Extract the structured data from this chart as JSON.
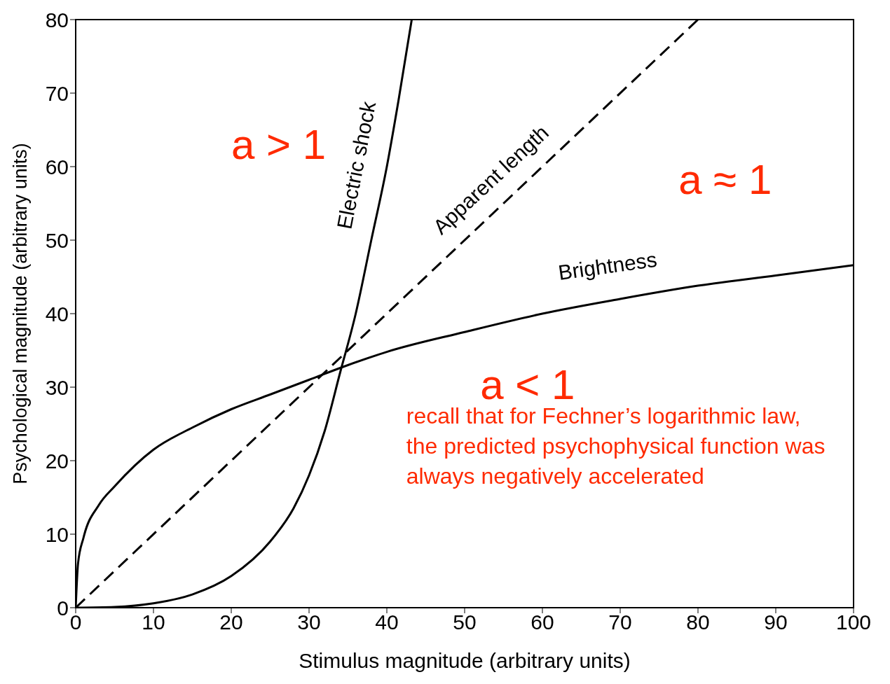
{
  "chart_data": {
    "type": "line",
    "xlabel": "Stimulus magnitude (arbitrary units)",
    "ylabel": "Psychological magnitude (arbitrary units)",
    "xlim": [
      0,
      100
    ],
    "ylim": [
      0,
      80
    ],
    "xticks": [
      0,
      10,
      20,
      30,
      40,
      50,
      60,
      70,
      80,
      90,
      100
    ],
    "yticks": [
      0,
      10,
      20,
      30,
      40,
      50,
      60,
      70,
      80
    ],
    "marker": "none",
    "series": [
      {
        "name": "Electric shock",
        "color": "#000000",
        "line_style": "solid",
        "x": [
          0,
          5,
          10,
          15,
          20,
          25,
          28,
          30,
          32,
          34,
          36,
          38,
          40,
          41.5,
          43.2
        ],
        "values": [
          0,
          0.1,
          0.6,
          1.8,
          4.3,
          9,
          13.5,
          18,
          24,
          32,
          40,
          50,
          60,
          69,
          80
        ]
      },
      {
        "name": "Apparent length",
        "color": "#000000",
        "line_style": "dashed",
        "x": [
          0,
          80
        ],
        "values": [
          0,
          80
        ]
      },
      {
        "name": "Brightness",
        "color": "#000000",
        "line_style": "solid",
        "x": [
          0,
          0.3,
          1,
          3,
          5,
          10,
          15,
          20,
          25,
          30,
          35,
          40,
          50,
          60,
          70,
          80,
          90,
          100
        ],
        "values": [
          0,
          6,
          9.5,
          14,
          16.5,
          21.5,
          24.5,
          27,
          29,
          31,
          33,
          34.8,
          37.5,
          40,
          42,
          43.8,
          45.2,
          46.6
        ]
      }
    ],
    "annotations": [
      "a > 1",
      "a ≈ 1",
      "a < 1",
      "recall that for Fechner’s logarithmic law, the predicted psychophysical function was always negatively accelerated"
    ]
  }
}
